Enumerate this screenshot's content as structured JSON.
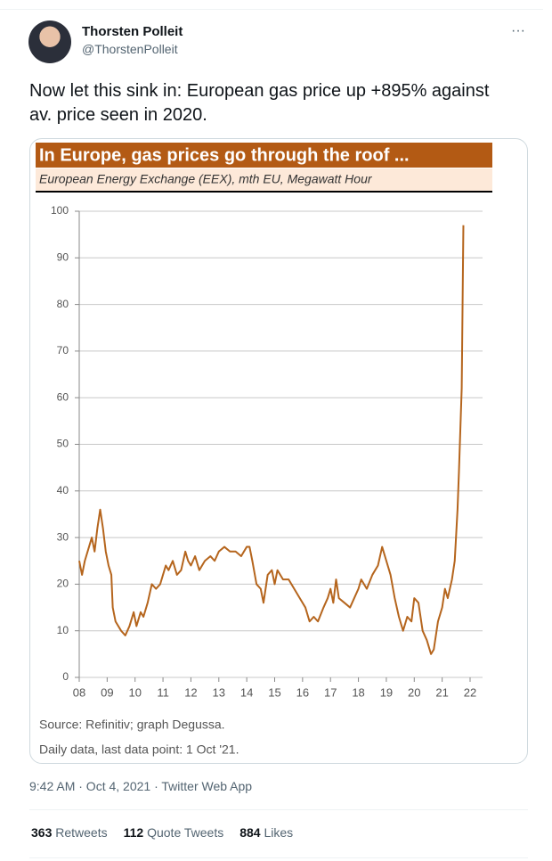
{
  "tweet": {
    "name": "Thorsten Polleit",
    "handle": "@ThorstenPolleit",
    "more": "···",
    "text": "Now let this sink in: European gas price up +895% against av. price seen in 2020.",
    "timestamp": "9:42 AM · Oct 4, 2021 · Twitter Web App",
    "stats": [
      {
        "count": 363,
        "label": "Retweets"
      },
      {
        "count": 112,
        "label": "Quote Tweets"
      },
      {
        "count": 884,
        "label": "Likes"
      }
    ]
  },
  "chart_data": {
    "type": "line",
    "title": "In Europe, gas prices go through the roof ...",
    "subtitle": "European Energy Exchange (EEX), mth EU, Megawatt Hour",
    "notes": [
      "Source: Refinitiv; graph Degussa.",
      "Daily data, last data point: 1 Oct '21."
    ],
    "xlim": [
      2008,
      2022
    ],
    "xticks": [
      {
        "value": 2008,
        "label": "08"
      },
      {
        "value": 2009,
        "label": "09"
      },
      {
        "value": 2010,
        "label": "10"
      },
      {
        "value": 2011,
        "label": "11"
      },
      {
        "value": 2012,
        "label": "12"
      },
      {
        "value": 2013,
        "label": "13"
      },
      {
        "value": 2014,
        "label": "14"
      },
      {
        "value": 2015,
        "label": "15"
      },
      {
        "value": 2016,
        "label": "16"
      },
      {
        "value": 2017,
        "label": "17"
      },
      {
        "value": 2018,
        "label": "18"
      },
      {
        "value": 2019,
        "label": "19"
      },
      {
        "value": 2020,
        "label": "20"
      },
      {
        "value": 2021,
        "label": "21"
      },
      {
        "value": 2022,
        "label": "22"
      }
    ],
    "ylim": [
      0,
      100
    ],
    "yticks": [
      0,
      10,
      20,
      30,
      40,
      50,
      60,
      70,
      80,
      90,
      100
    ],
    "grid": true,
    "color": "#b5651d",
    "x": [
      2008.0,
      2008.1,
      2008.2,
      2008.35,
      2008.45,
      2008.55,
      2008.65,
      2008.75,
      2008.85,
      2008.95,
      2009.05,
      2009.15,
      2009.2,
      2009.3,
      2009.5,
      2009.65,
      2009.8,
      2009.95,
      2010.05,
      2010.2,
      2010.3,
      2010.45,
      2010.6,
      2010.75,
      2010.9,
      2011.0,
      2011.1,
      2011.2,
      2011.35,
      2011.5,
      2011.65,
      2011.8,
      2011.9,
      2012.0,
      2012.15,
      2012.3,
      2012.5,
      2012.7,
      2012.85,
      2013.0,
      2013.2,
      2013.4,
      2013.6,
      2013.8,
      2014.0,
      2014.1,
      2014.2,
      2014.35,
      2014.5,
      2014.6,
      2014.75,
      2014.9,
      2015.0,
      2015.1,
      2015.3,
      2015.5,
      2015.7,
      2015.9,
      2016.1,
      2016.25,
      2016.4,
      2016.55,
      2016.75,
      2016.9,
      2017.0,
      2017.1,
      2017.2,
      2017.3,
      2017.5,
      2017.7,
      2017.85,
      2018.0,
      2018.1,
      2018.3,
      2018.5,
      2018.7,
      2018.85,
      2019.0,
      2019.15,
      2019.3,
      2019.45,
      2019.6,
      2019.75,
      2019.9,
      2020.0,
      2020.15,
      2020.3,
      2020.45,
      2020.6,
      2020.7,
      2020.85,
      2021.0,
      2021.1,
      2021.2,
      2021.35,
      2021.45,
      2021.55,
      2021.6,
      2021.7,
      2021.76
    ],
    "values": [
      25,
      22,
      25,
      28,
      30,
      27,
      32,
      36,
      32,
      27,
      24,
      22,
      15,
      12,
      10,
      9,
      11,
      14,
      11,
      14,
      13,
      16,
      20,
      19,
      20,
      22,
      24,
      23,
      25,
      22,
      23,
      27,
      25,
      24,
      26,
      23,
      25,
      26,
      25,
      27,
      28,
      27,
      27,
      26,
      28,
      28,
      25,
      20,
      19,
      16,
      22,
      23,
      20,
      23,
      21,
      21,
      19,
      17,
      15,
      12,
      13,
      12,
      15,
      17,
      19,
      16,
      21,
      17,
      16,
      15,
      17,
      19,
      21,
      19,
      22,
      24,
      28,
      25,
      22,
      17,
      13,
      10,
      13,
      12,
      17,
      16,
      10,
      8,
      5,
      6,
      12,
      15,
      19,
      17,
      21,
      25,
      36,
      44,
      62,
      97
    ]
  }
}
